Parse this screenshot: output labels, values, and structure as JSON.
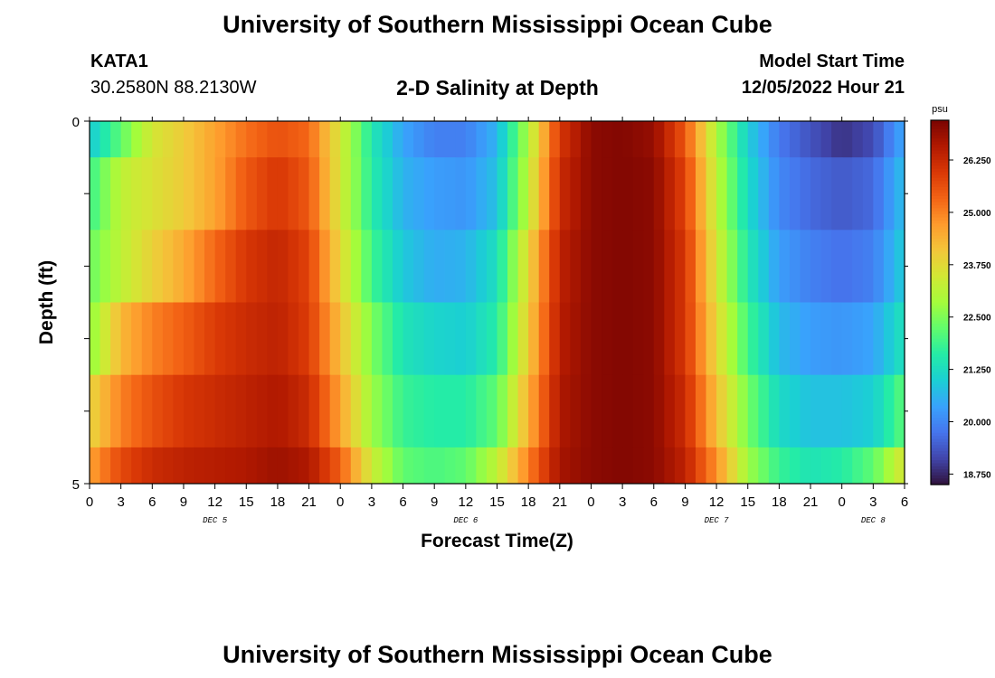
{
  "header": {
    "title": "University of Southern Mississippi Ocean Cube",
    "station": "KATA1",
    "coordinates": "30.2580N  88.2130W",
    "subtitle": "2-D Salinity at Depth",
    "model_start_label": "Model Start Time",
    "model_start_value": "12/05/2022 Hour 21"
  },
  "footer": {
    "title": "University of Southern Mississippi Ocean Cube"
  },
  "chart_data": {
    "type": "heatmap",
    "xlabel": "Forecast Time(Z)",
    "ylabel": "Depth (ft)",
    "y_ticks": [
      "0",
      "5"
    ],
    "ylim": [
      0,
      5
    ],
    "x_tick_labels": [
      "0",
      "3",
      "6",
      "9",
      "12",
      "15",
      "18",
      "21",
      "0",
      "3",
      "6",
      "9",
      "12",
      "15",
      "18",
      "21",
      "0",
      "3",
      "6",
      "9",
      "12",
      "15",
      "18",
      "21",
      "0",
      "3",
      "6"
    ],
    "x_hours": [
      0,
      3,
      6,
      9,
      12,
      15,
      18,
      21,
      24,
      27,
      30,
      33,
      36,
      39,
      42,
      45,
      48,
      51,
      54,
      57,
      60,
      63,
      66,
      69,
      72,
      75,
      78
    ],
    "date_labels": [
      {
        "text": "DEC 5",
        "hour": 12
      },
      {
        "text": "DEC 6",
        "hour": 36
      },
      {
        "text": "DEC 7",
        "hour": 60
      },
      {
        "text": "DEC 8",
        "hour": 75
      }
    ],
    "colorbar": {
      "unit": "psu",
      "ticks": [
        "26.250",
        "25.000",
        "23.750",
        "22.500",
        "21.250",
        "20.000",
        "18.750"
      ],
      "tick_values": [
        26.25,
        25.0,
        23.75,
        22.5,
        21.25,
        20.0,
        18.75
      ],
      "range": [
        18.5,
        27.2
      ],
      "colormap": [
        "#30123b",
        "#4145ab",
        "#4675ed",
        "#39a2fc",
        "#1bcfd4",
        "#24eca6",
        "#61fc6c",
        "#a4fc3b",
        "#d1e834",
        "#f3c63a",
        "#fe9b2d",
        "#f36315",
        "#d93806",
        "#b11901",
        "#7a0402"
      ]
    },
    "depth_levels": [
      {
        "label": "row-0-top",
        "depth_range": [
          0,
          0.5
        ]
      },
      {
        "label": "row-1",
        "depth_range": [
          0.5,
          1.5
        ]
      },
      {
        "label": "row-2",
        "depth_range": [
          1.5,
          2.5
        ]
      },
      {
        "label": "row-3",
        "depth_range": [
          2.5,
          3.5
        ]
      },
      {
        "label": "row-4",
        "depth_range": [
          3.5,
          4.5
        ]
      },
      {
        "label": "row-5-bottom",
        "depth_range": [
          4.5,
          5
        ]
      }
    ],
    "series": [
      {
        "hours": [
          0,
          3,
          6,
          9,
          12,
          15,
          18,
          21,
          24,
          27,
          30,
          33,
          36,
          39,
          42,
          45,
          48,
          51,
          54,
          57,
          60,
          63,
          66,
          69,
          72,
          75,
          78
        ],
        "values": [
          20.9,
          22.2,
          23.5,
          24.0,
          24.6,
          25.2,
          25.6,
          25.3,
          23.5,
          21.5,
          20.4,
          19.9,
          19.9,
          20.6,
          23.0,
          26.0,
          27.0,
          27.1,
          26.9,
          25.5,
          23.0,
          21.0,
          19.8,
          19.3,
          18.9,
          19.2,
          20.5
        ]
      },
      {
        "hours": [
          0,
          3,
          6,
          9,
          12,
          15,
          18,
          21,
          24,
          27,
          30,
          33,
          36,
          39,
          42,
          45,
          48,
          51,
          54,
          57,
          60,
          63,
          66,
          69,
          72,
          75,
          78
        ],
        "values": [
          21.8,
          23.2,
          23.6,
          24.0,
          24.6,
          25.5,
          26.0,
          25.5,
          23.5,
          21.6,
          20.6,
          20.3,
          20.2,
          20.8,
          23.2,
          26.2,
          27.0,
          27.1,
          27.0,
          25.8,
          23.2,
          21.2,
          20.0,
          19.6,
          19.4,
          19.6,
          20.8
        ]
      },
      {
        "hours": [
          0,
          3,
          6,
          9,
          12,
          15,
          18,
          21,
          24,
          27,
          30,
          33,
          36,
          39,
          42,
          45,
          48,
          51,
          54,
          57,
          60,
          63,
          66,
          69,
          72,
          75,
          78
        ],
        "values": [
          22.3,
          23.2,
          23.9,
          24.5,
          25.3,
          26.0,
          26.3,
          25.8,
          23.8,
          21.9,
          20.9,
          20.5,
          20.6,
          21.3,
          23.8,
          26.4,
          27.0,
          27.1,
          27.0,
          26.0,
          23.5,
          21.5,
          20.3,
          19.9,
          19.7,
          19.9,
          21.0
        ]
      },
      {
        "hours": [
          0,
          3,
          6,
          9,
          12,
          15,
          18,
          21,
          24,
          27,
          30,
          33,
          36,
          39,
          42,
          45,
          48,
          51,
          54,
          57,
          60,
          63,
          66,
          69,
          72,
          75,
          78
        ],
        "values": [
          22.6,
          24.3,
          25.0,
          25.4,
          25.9,
          26.2,
          26.4,
          25.9,
          24.2,
          22.5,
          21.4,
          21.1,
          21.0,
          21.6,
          24.0,
          26.5,
          27.0,
          27.1,
          27.0,
          26.0,
          23.8,
          21.9,
          20.7,
          20.3,
          20.2,
          20.4,
          21.4
        ]
      },
      {
        "hours": [
          0,
          3,
          6,
          9,
          12,
          15,
          18,
          21,
          24,
          27,
          30,
          33,
          36,
          39,
          42,
          45,
          48,
          51,
          54,
          57,
          60,
          63,
          66,
          69,
          72,
          75,
          78
        ],
        "values": [
          23.8,
          25.0,
          25.6,
          26.0,
          26.2,
          26.4,
          26.6,
          26.2,
          24.6,
          22.8,
          21.8,
          21.6,
          21.6,
          22.2,
          24.4,
          26.6,
          27.0,
          27.1,
          27.0,
          26.2,
          24.2,
          22.4,
          21.2,
          20.8,
          20.8,
          21.0,
          22.2
        ]
      },
      {
        "hours": [
          0,
          3,
          6,
          9,
          12,
          15,
          18,
          21,
          24,
          27,
          30,
          33,
          36,
          39,
          42,
          45,
          48,
          51,
          54,
          57,
          60,
          63,
          66,
          69,
          72,
          75,
          78
        ],
        "values": [
          24.6,
          25.7,
          26.2,
          26.4,
          26.5,
          26.6,
          26.8,
          26.6,
          25.4,
          23.4,
          22.2,
          22.0,
          22.2,
          23.2,
          25.0,
          26.7,
          27.0,
          27.1,
          27.0,
          26.4,
          24.8,
          22.8,
          21.8,
          21.4,
          21.6,
          22.2,
          23.6
        ]
      }
    ]
  }
}
